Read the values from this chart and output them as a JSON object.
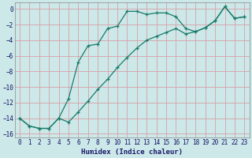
{
  "xlabel": "Humidex (Indice chaleur)",
  "bg_color": "#cce8e8",
  "grid_color": "#d8a0a8",
  "line_color": "#1a7a6a",
  "xlim": [
    -0.5,
    23.5
  ],
  "ylim": [
    -16.5,
    0.8
  ],
  "yticks": [
    0,
    -2,
    -4,
    -6,
    -8,
    -10,
    -12,
    -14,
    -16
  ],
  "xticks": [
    0,
    1,
    2,
    3,
    4,
    5,
    6,
    7,
    8,
    9,
    10,
    11,
    12,
    13,
    14,
    15,
    16,
    17,
    18,
    19,
    20,
    21,
    22,
    23
  ],
  "line1_x": [
    0,
    1,
    2,
    3,
    4,
    5,
    6,
    7,
    8,
    9,
    10,
    11,
    12,
    13,
    14,
    15,
    16,
    17,
    18,
    19,
    20,
    21,
    22,
    23
  ],
  "line1_y": [
    -14,
    -15,
    -15.3,
    -15.3,
    -14.0,
    -11.5,
    -6.8,
    -4.7,
    -4.5,
    -2.5,
    -2.2,
    -0.3,
    -0.3,
    -0.7,
    -0.5,
    -0.5,
    -1.0,
    -2.5,
    -2.9,
    -2.4,
    -1.5,
    0.3,
    -1.2,
    -1.0
  ],
  "line2_x": [
    0,
    1,
    2,
    3,
    4,
    5,
    6,
    7,
    8,
    9,
    10,
    11,
    12,
    13,
    14,
    15,
    16,
    17,
    18,
    19,
    20,
    21,
    22,
    23
  ],
  "line2_y": [
    -14,
    -15,
    -15.3,
    -15.3,
    -14.0,
    -14.5,
    -13.2,
    -11.8,
    -10.3,
    -9.0,
    -7.5,
    -6.2,
    -5.0,
    -4.0,
    -3.5,
    -3.0,
    -2.5,
    -3.2,
    -2.9,
    -2.4,
    -1.5,
    0.3,
    -1.2,
    -1.0
  ]
}
